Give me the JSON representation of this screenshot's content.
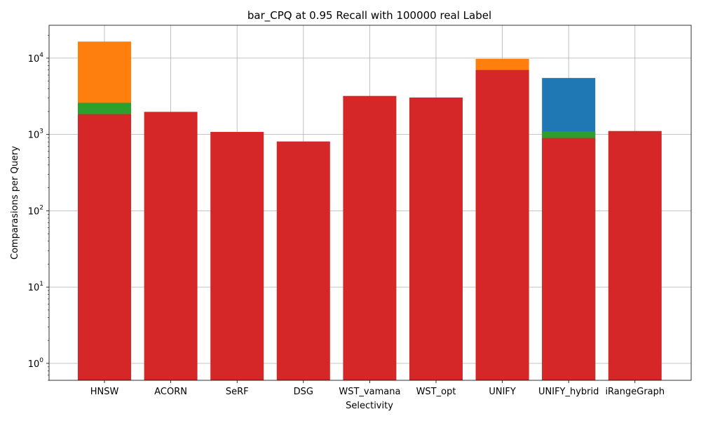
{
  "chart_data": {
    "type": "bar",
    "title": "bar_CPQ at 0.95 Recall with 100000 real Label",
    "xlabel": "Selectivity",
    "ylabel": "Comparasions per Query",
    "yscale": "log",
    "ylim": [
      0.6,
      27000
    ],
    "grid": true,
    "categories": [
      "HNSW",
      "ACORN",
      "SeRF",
      "DSG",
      "WST_vamana",
      "WST_opt",
      "UNIFY",
      "UNIFY_hybrid",
      "iRangeGraph"
    ],
    "y_ticks": [
      {
        "value": 1,
        "base": "10",
        "exp": "0"
      },
      {
        "value": 10,
        "base": "10",
        "exp": "1"
      },
      {
        "value": 100,
        "base": "10",
        "exp": "2"
      },
      {
        "value": 1000,
        "base": "10",
        "exp": "3"
      },
      {
        "value": 10000,
        "base": "10",
        "exp": "4"
      }
    ],
    "series": [
      {
        "color": "#1f77b4",
        "values": [
          null,
          null,
          null,
          null,
          null,
          null,
          null,
          5500,
          null
        ]
      },
      {
        "color": "#ff7f0e",
        "values": [
          16500,
          null,
          null,
          null,
          null,
          null,
          9800,
          null,
          null
        ]
      },
      {
        "color": "#2ca02c",
        "values": [
          2600,
          null,
          null,
          null,
          null,
          null,
          null,
          1100,
          null
        ]
      },
      {
        "color": "#d62728",
        "values": [
          1850,
          1980,
          1080,
          810,
          3200,
          3050,
          7000,
          900,
          1110
        ]
      }
    ]
  }
}
